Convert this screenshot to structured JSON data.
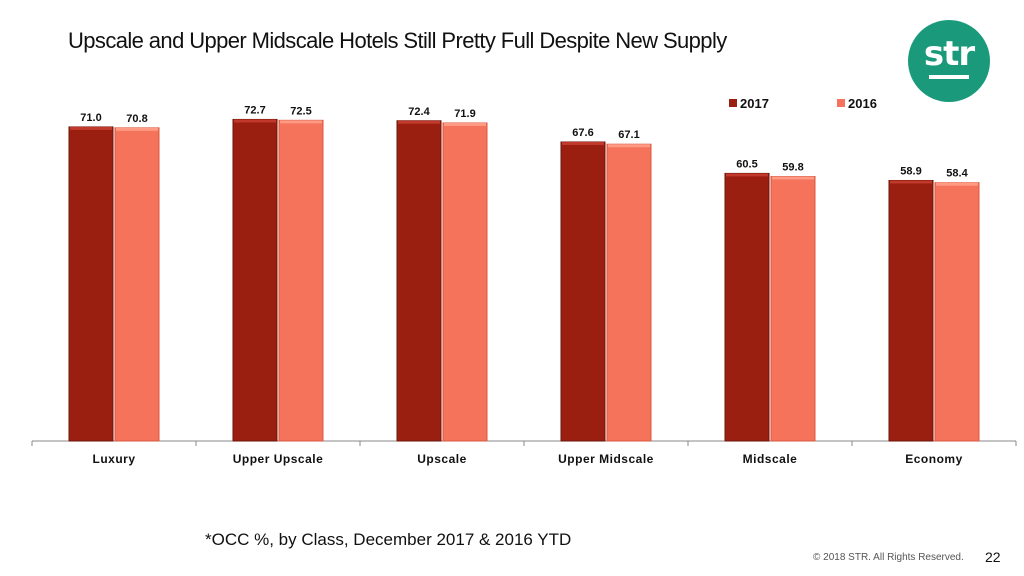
{
  "slide": {
    "title": "Upscale and Upper Midscale Hotels Still Pretty Full Despite New Supply",
    "footnote": "*OCC %, by Class, December 2017 & 2016 YTD",
    "copyright": "© 2018 STR. All Rights Reserved.",
    "page_number": "22",
    "logo_text": "str",
    "logo_color": "#1a9a7a"
  },
  "chart_data": {
    "type": "bar",
    "title": "",
    "xlabel": "",
    "ylabel": "",
    "ylim": [
      0,
      78
    ],
    "grid": false,
    "legend_position": "top-right",
    "categories": [
      "Luxury",
      "Upper Upscale",
      "Upscale",
      "Upper Midscale",
      "Midscale",
      "Economy"
    ],
    "series": [
      {
        "name": "2017",
        "color": "#9b1f10",
        "values": [
          71.0,
          72.7,
          72.4,
          67.6,
          60.5,
          58.9
        ]
      },
      {
        "name": "2016",
        "color": "#f4735a",
        "values": [
          70.8,
          72.5,
          71.9,
          67.1,
          59.8,
          58.4
        ]
      }
    ]
  }
}
